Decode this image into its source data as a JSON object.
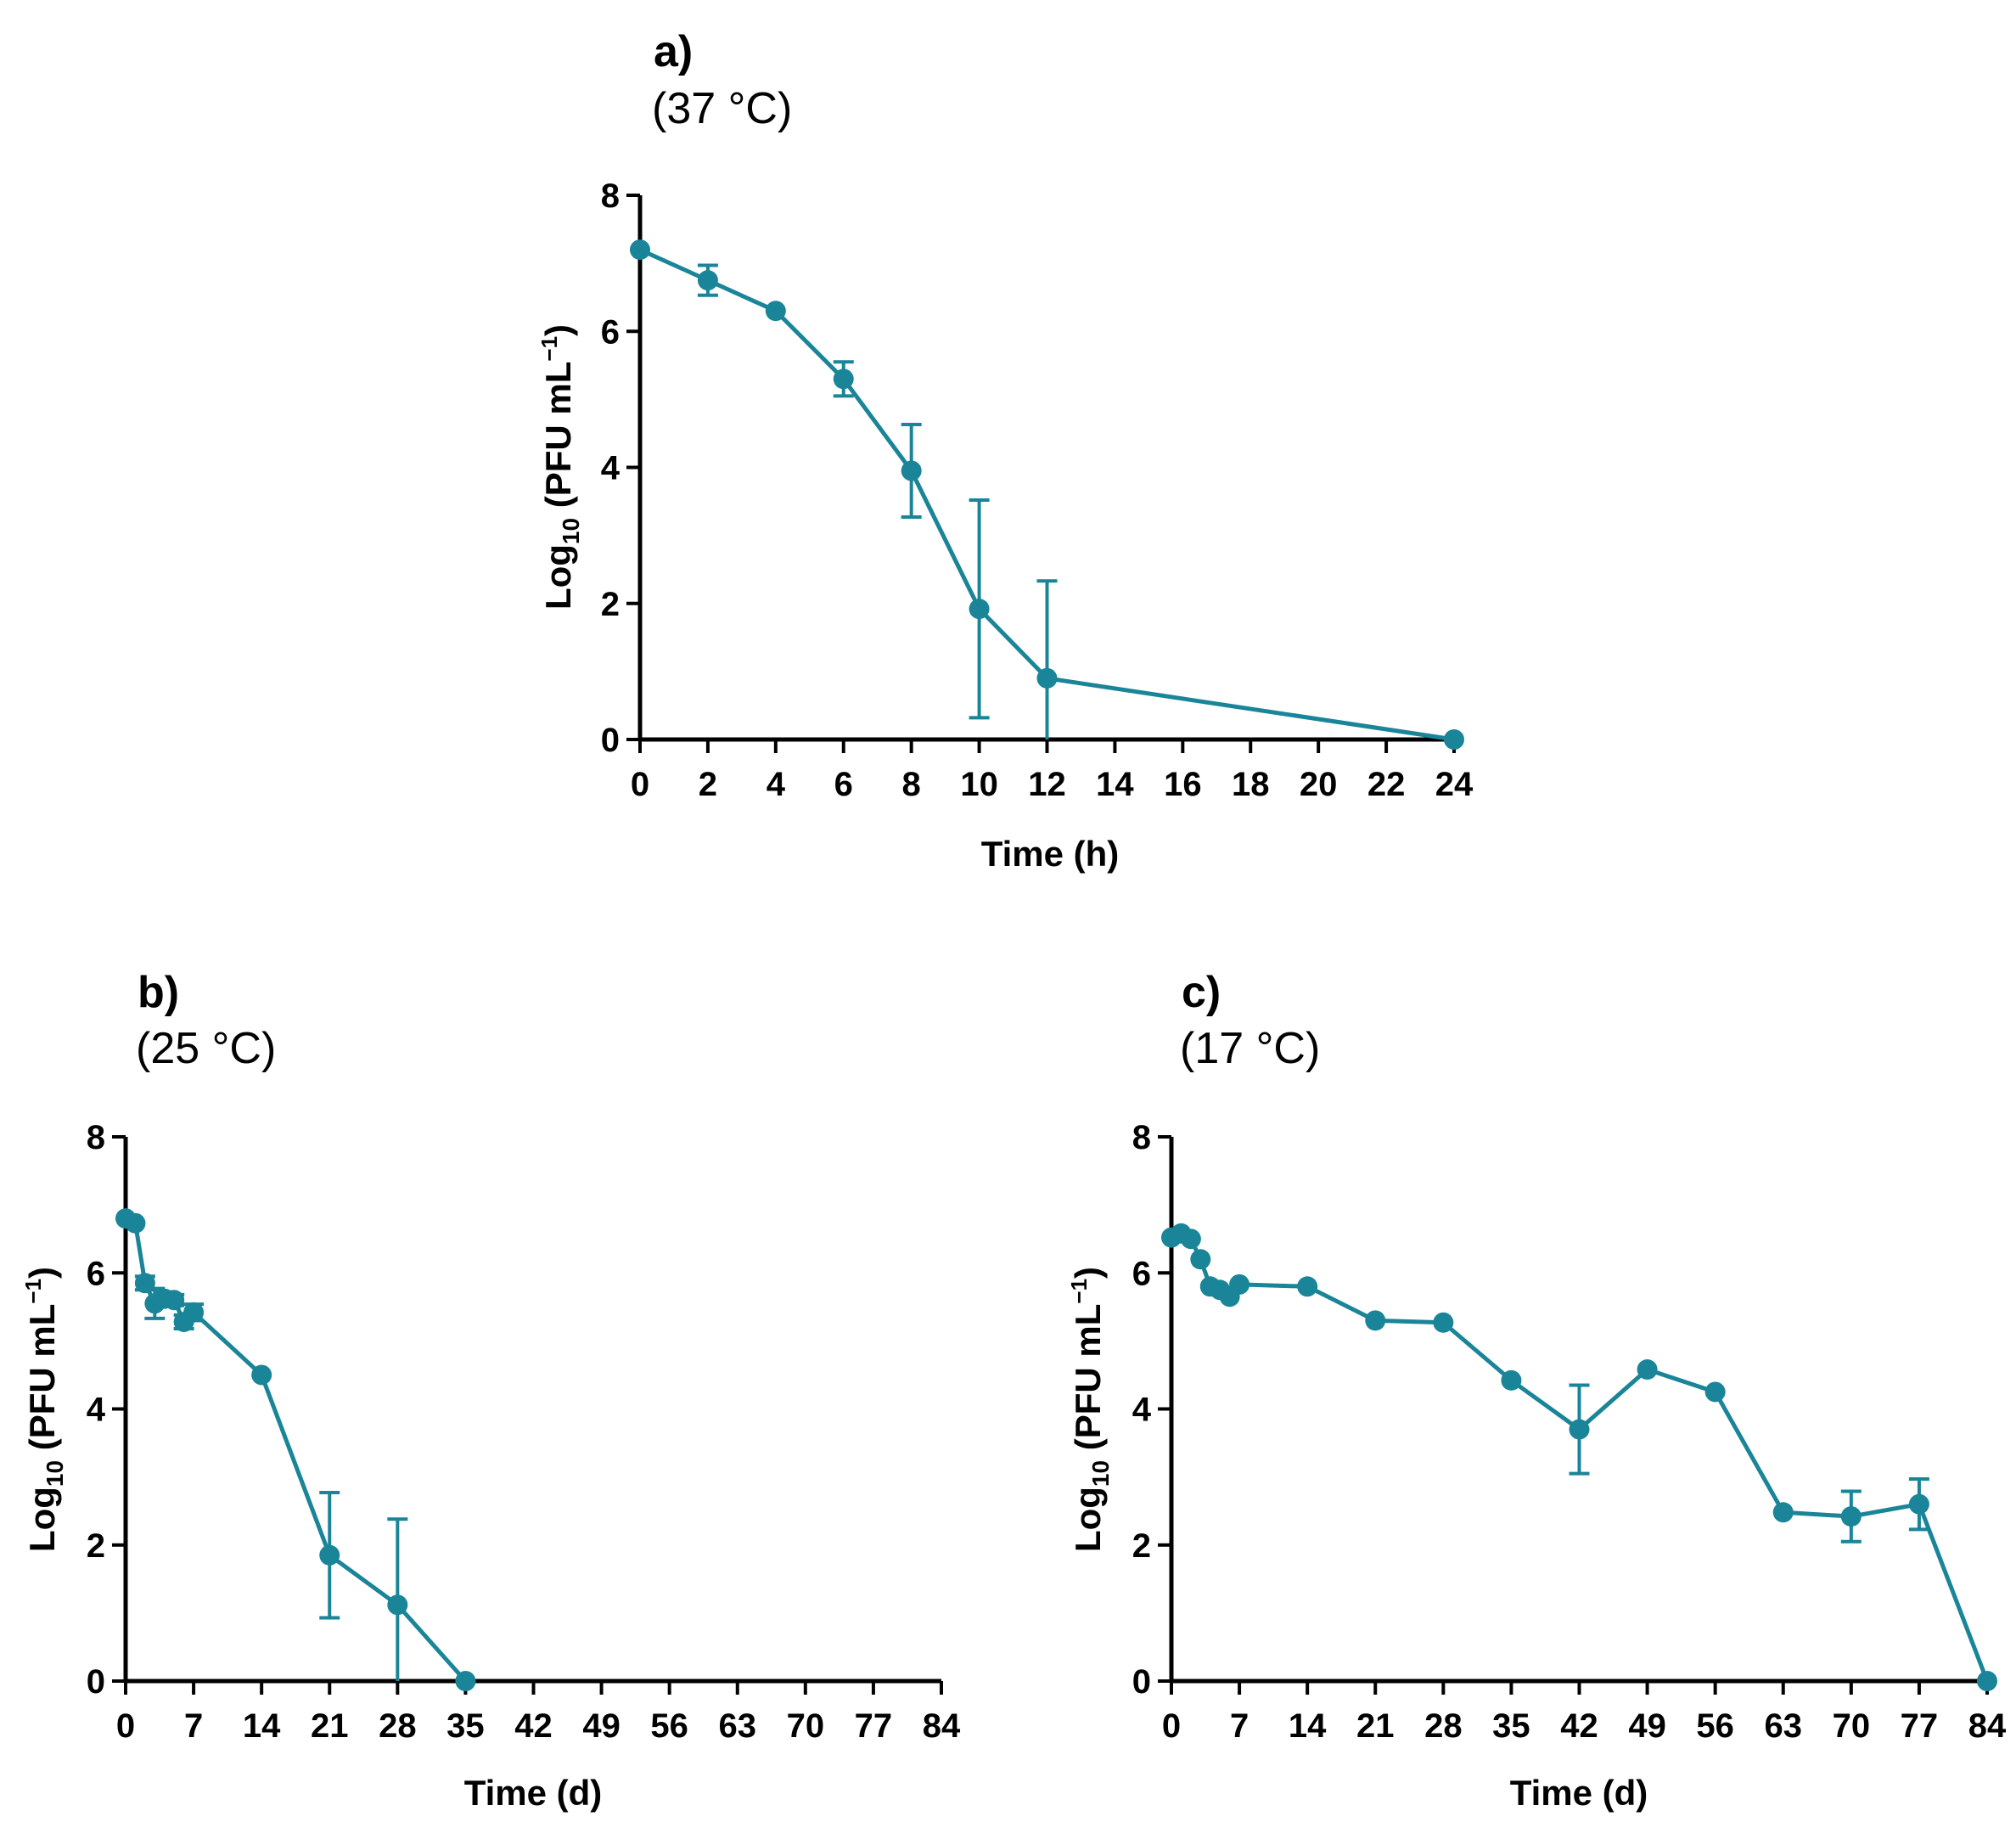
{
  "chart_data": [
    {
      "id": "a",
      "type": "line",
      "panel_label": "a)",
      "subtitle": "(37 °C)",
      "xlabel": "Time (h)",
      "ylabel": {
        "base": "Log",
        "subscript": "10",
        "main": " (PFU mL",
        "superscript": "−1",
        "close": ")"
      },
      "x_scale": "categorical",
      "xticks": [
        "0",
        "2",
        "4",
        "6",
        "8",
        "10",
        "12",
        "14",
        "16",
        "18",
        "20",
        "22",
        "24"
      ],
      "yticks": [
        "0",
        "2",
        "4",
        "6",
        "8"
      ],
      "ylim": [
        0,
        8
      ],
      "series": [
        {
          "name": "Log10 (PFU mL−1)",
          "color": "#1a8599",
          "x": [
            0,
            2,
            4,
            6,
            8,
            10,
            12,
            24
          ],
          "y": [
            7.2,
            6.75,
            6.3,
            5.3,
            3.95,
            1.92,
            0.9,
            0.0
          ],
          "err": [
            0.0,
            0.22,
            0.0,
            0.25,
            0.68,
            1.6,
            1.43,
            0.0
          ]
        }
      ]
    },
    {
      "id": "b",
      "type": "line",
      "panel_label": "b)",
      "subtitle": "(25 °C)",
      "xlabel": "Time (d)",
      "ylabel": {
        "base": "Log",
        "subscript": "10",
        "main": " (PFU mL",
        "superscript": "−1",
        "close": ")"
      },
      "x_scale": "linear",
      "xlim": [
        0,
        84
      ],
      "xticks": [
        "0",
        "7",
        "14",
        "21",
        "28",
        "35",
        "42",
        "49",
        "56",
        "63",
        "70",
        "77",
        "84"
      ],
      "yticks": [
        "0",
        "2",
        "4",
        "6",
        "8"
      ],
      "ylim": [
        0,
        8
      ],
      "series": [
        {
          "name": "Log10 (PFU mL−1)",
          "color": "#1a8599",
          "x": [
            0,
            1,
            2,
            3,
            4,
            5,
            6,
            7,
            14,
            21,
            28,
            35
          ],
          "y": [
            6.8,
            6.73,
            5.85,
            5.55,
            5.62,
            5.6,
            5.28,
            5.42,
            4.5,
            1.85,
            1.12,
            0.0
          ],
          "err": [
            0.0,
            0.0,
            0.1,
            0.22,
            0.1,
            0.08,
            0.1,
            0.12,
            0.0,
            0.92,
            1.26,
            0.0
          ]
        }
      ]
    },
    {
      "id": "c",
      "type": "line",
      "panel_label": "c)",
      "subtitle": "(17 °C)",
      "xlabel": "Time (d)",
      "ylabel": {
        "base": "Log",
        "subscript": "10",
        "main": " (PFU mL",
        "superscript": "−1",
        "close": ")"
      },
      "x_scale": "linear",
      "xlim": [
        0,
        84
      ],
      "xticks": [
        "0",
        "7",
        "14",
        "21",
        "28",
        "35",
        "42",
        "49",
        "56",
        "63",
        "70",
        "77",
        "84"
      ],
      "yticks": [
        "0",
        "2",
        "4",
        "6",
        "8"
      ],
      "ylim": [
        0,
        8
      ],
      "series": [
        {
          "name": "Log10 (PFU mL−1)",
          "color": "#1a8599",
          "x": [
            0,
            1,
            2,
            3,
            4,
            5,
            6,
            7,
            14,
            21,
            28,
            35,
            42,
            49,
            56,
            63,
            70,
            77,
            84
          ],
          "y": [
            6.52,
            6.58,
            6.5,
            6.2,
            5.8,
            5.75,
            5.65,
            5.83,
            5.8,
            5.3,
            5.27,
            4.42,
            3.7,
            4.58,
            4.25,
            2.48,
            2.42,
            2.6,
            0.0
          ],
          "err": [
            0.0,
            0.0,
            0.0,
            0.0,
            0.0,
            0.0,
            0.0,
            0.0,
            0.0,
            0.0,
            0.0,
            0.0,
            0.65,
            0.0,
            0.0,
            0.0,
            0.37,
            0.37,
            0.0
          ]
        }
      ]
    }
  ]
}
